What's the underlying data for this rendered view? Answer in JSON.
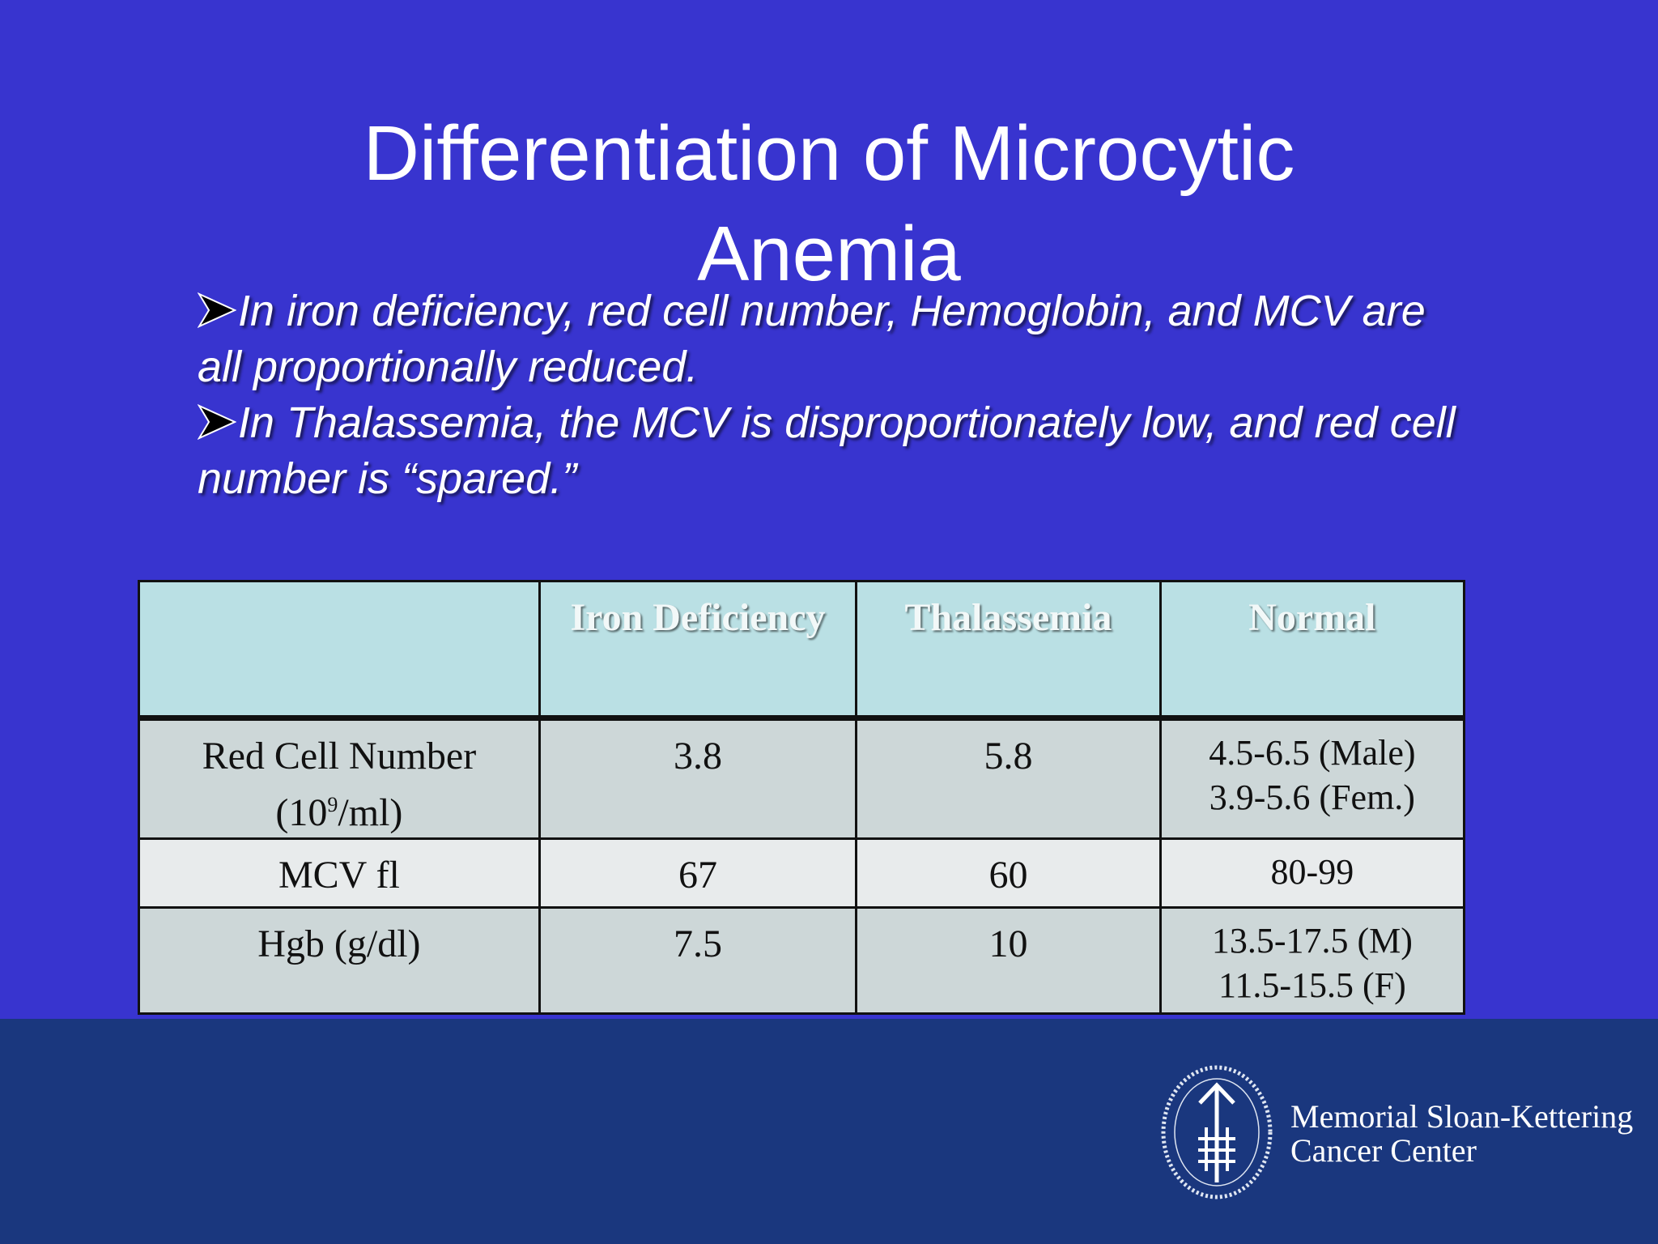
{
  "slide": {
    "title_line1": "Differentiation of Microcytic",
    "title_line2": "Anemia",
    "bullets": [
      "In iron deficiency, red cell number, Hemoglobin, and MCV are all proportionally reduced.",
      "In Thalassemia, the MCV is disproportionately low, and red cell number is “spared.”"
    ]
  },
  "table": {
    "headers": [
      "",
      "Iron Deficiency",
      "Thalassemia",
      "Normal"
    ],
    "rows": [
      {
        "label_line1": "Red Cell Number",
        "label_prefix": "(10",
        "label_sup": "9",
        "label_suffix": "/ml)",
        "iron": "3.8",
        "thal": "5.8",
        "normal_line1": "4.5-6.5 (Male)",
        "normal_line2": "3.9-5.6 (Fem.)"
      },
      {
        "label": "MCV fl",
        "iron": "67",
        "thal": "60",
        "normal": "80-99"
      },
      {
        "label": "Hgb (g/dl)",
        "iron": "7.5",
        "thal": "10",
        "normal_line1": "13.5-17.5 (M)",
        "normal_line2": "11.5-15.5 (F)"
      }
    ]
  },
  "footer": {
    "logo_line1": "Memorial Sloan-Kettering",
    "logo_line2": "Cancer Center"
  },
  "colors": {
    "slide_background": "#3834cf",
    "footer_background": "#1a377e",
    "header_row": "#bae0e4",
    "row_dark": "#cdd7d8",
    "row_light": "#e8ebec"
  }
}
